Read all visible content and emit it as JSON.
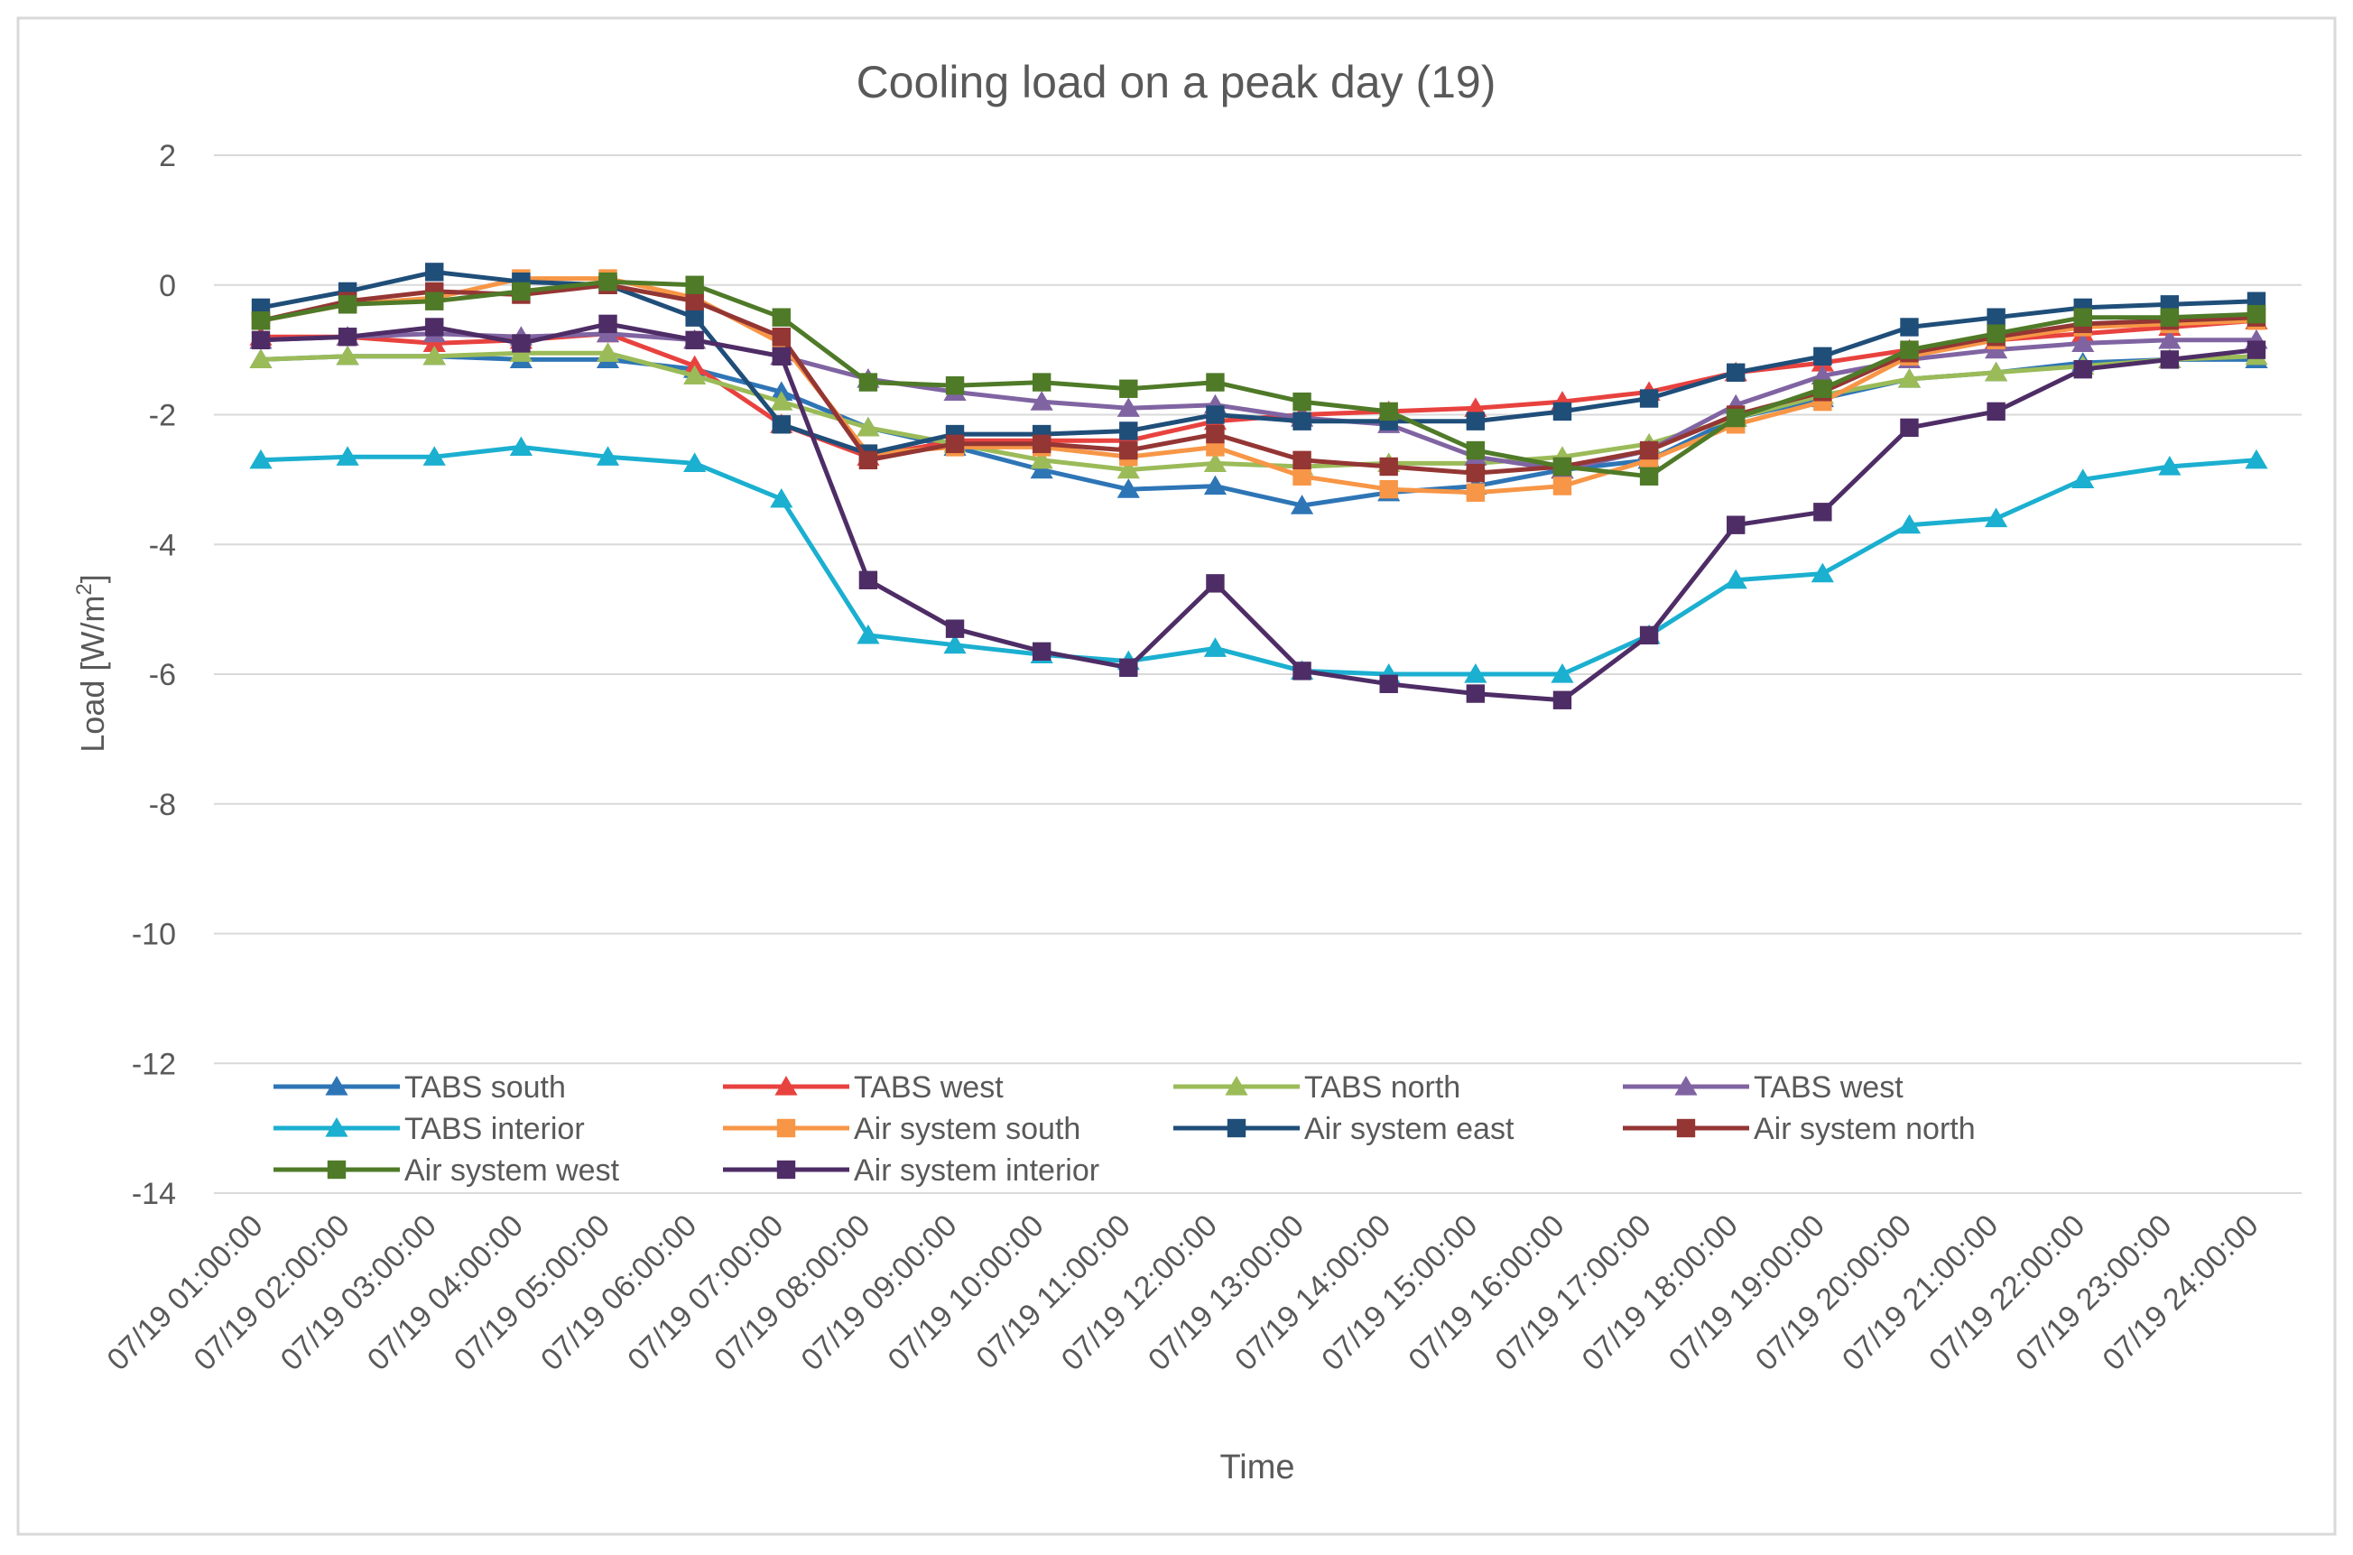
{
  "chart_data": {
    "type": "line",
    "title": "Cooling load on a peak day (19)",
    "xlabel": "Time",
    "ylabel_main": "Load [W/m",
    "ylabel_sup": "2",
    "ylabel_end": "]",
    "ylim": [
      -14,
      2
    ],
    "yticks": [
      2,
      0,
      -2,
      -4,
      -6,
      -8,
      -10,
      -12,
      -14
    ],
    "ytick_labels": [
      "2",
      "0",
      "-2",
      "-4",
      "-6",
      "-8",
      "-10",
      "-12",
      "-14"
    ],
    "grid": true,
    "legend_position": "bottom-inside",
    "categories": [
      "07/19  01:00:00",
      "07/19  02:00:00",
      "07/19  03:00:00",
      "07/19  04:00:00",
      "07/19  05:00:00",
      "07/19  06:00:00",
      "07/19  07:00:00",
      "07/19  08:00:00",
      "07/19  09:00:00",
      "07/19  10:00:00",
      "07/19  11:00:00",
      "07/19  12:00:00",
      "07/19  13:00:00",
      "07/19  14:00:00",
      "07/19  15:00:00",
      "07/19  16:00:00",
      "07/19  17:00:00",
      "07/19  18:00:00",
      "07/19  19:00:00",
      "07/19  20:00:00",
      "07/19  21:00:00",
      "07/19  22:00:00",
      "07/19  23:00:00",
      "07/19  24:00:00"
    ],
    "series": [
      {
        "name": "TABS south",
        "color": "#2E75B6",
        "marker": "triangle",
        "values": [
          -1.15,
          -1.1,
          -1.1,
          -1.15,
          -1.15,
          -1.3,
          -1.65,
          -2.2,
          -2.5,
          -2.85,
          -3.15,
          -3.1,
          -3.4,
          -3.2,
          -3.1,
          -2.85,
          -2.7,
          -2.05,
          -1.75,
          -1.45,
          -1.35,
          -1.2,
          -1.15,
          -1.15
        ]
      },
      {
        "name": "TABS west",
        "color": "#E8423F",
        "marker": "triangle",
        "values": [
          -0.8,
          -0.8,
          -0.9,
          -0.85,
          -0.75,
          -1.25,
          -2.15,
          -2.65,
          -2.4,
          -2.4,
          -2.4,
          -2.1,
          -2.0,
          -1.95,
          -1.9,
          -1.8,
          -1.65,
          -1.35,
          -1.2,
          -1.0,
          -0.85,
          -0.75,
          -0.65,
          -0.55
        ]
      },
      {
        "name": "TABS north",
        "color": "#9BBB59",
        "marker": "triangle",
        "values": [
          -1.15,
          -1.1,
          -1.1,
          -1.05,
          -1.05,
          -1.4,
          -1.8,
          -2.2,
          -2.45,
          -2.7,
          -2.85,
          -2.75,
          -2.8,
          -2.75,
          -2.75,
          -2.65,
          -2.45,
          -2.05,
          -1.7,
          -1.45,
          -1.35,
          -1.25,
          -1.15,
          -1.1
        ]
      },
      {
        "name": "TABS west",
        "color": "#8064A2",
        "marker": "triangle",
        "values": [
          -0.85,
          -0.8,
          -0.75,
          -0.8,
          -0.75,
          -0.85,
          -1.1,
          -1.45,
          -1.65,
          -1.8,
          -1.9,
          -1.85,
          -2.05,
          -2.15,
          -2.65,
          -2.85,
          -2.55,
          -1.85,
          -1.4,
          -1.15,
          -1.0,
          -0.9,
          -0.85,
          -0.85
        ]
      },
      {
        "name": "TABS interior",
        "color": "#1BAFD0",
        "marker": "triangle",
        "values": [
          -2.7,
          -2.65,
          -2.65,
          -2.5,
          -2.65,
          -2.75,
          -3.3,
          -5.4,
          -5.55,
          -5.7,
          -5.8,
          -5.6,
          -5.95,
          -6.0,
          -6.0,
          -6.0,
          -5.4,
          -4.55,
          -4.45,
          -3.7,
          -3.6,
          -3.0,
          -2.8,
          -2.7
        ]
      },
      {
        "name": "Air system south",
        "color": "#F79646",
        "marker": "square",
        "values": [
          -0.55,
          -0.3,
          -0.2,
          0.1,
          0.1,
          -0.2,
          -0.9,
          -2.6,
          -2.5,
          -2.5,
          -2.65,
          -2.5,
          -2.95,
          -3.15,
          -3.2,
          -3.1,
          -2.7,
          -2.15,
          -1.8,
          -1.1,
          -0.85,
          -0.65,
          -0.6,
          -0.55
        ]
      },
      {
        "name": "Air system east",
        "color": "#1F4E79",
        "marker": "square",
        "values": [
          -0.35,
          -0.1,
          0.2,
          0.05,
          0.0,
          -0.5,
          -2.15,
          -2.6,
          -2.3,
          -2.3,
          -2.25,
          -2.0,
          -2.1,
          -2.1,
          -2.1,
          -1.95,
          -1.75,
          -1.35,
          -1.1,
          -0.65,
          -0.5,
          -0.35,
          -0.3,
          -0.25
        ]
      },
      {
        "name": "Air system north",
        "color": "#943634",
        "marker": "square",
        "values": [
          -0.55,
          -0.25,
          -0.1,
          -0.15,
          0.0,
          -0.25,
          -0.8,
          -2.7,
          -2.45,
          -2.45,
          -2.55,
          -2.3,
          -2.7,
          -2.8,
          -2.9,
          -2.8,
          -2.55,
          -2.0,
          -1.65,
          -1.05,
          -0.8,
          -0.6,
          -0.55,
          -0.5
        ]
      },
      {
        "name": "Air system west",
        "color": "#4F7A28",
        "marker": "square",
        "values": [
          -0.55,
          -0.3,
          -0.25,
          -0.1,
          0.05,
          0.0,
          -0.5,
          -1.5,
          -1.55,
          -1.5,
          -1.6,
          -1.5,
          -1.8,
          -1.95,
          -2.55,
          -2.8,
          -2.95,
          -2.05,
          -1.6,
          -1.0,
          -0.75,
          -0.5,
          -0.5,
          -0.45
        ]
      },
      {
        "name": "Air system interior",
        "color": "#4E2D66",
        "marker": "square",
        "values": [
          -0.85,
          -0.8,
          -0.65,
          -0.9,
          -0.6,
          -0.85,
          -1.1,
          -4.55,
          -5.3,
          -5.65,
          -5.9,
          -4.6,
          -5.95,
          -6.15,
          -6.3,
          -6.4,
          -5.4,
          -3.7,
          -3.5,
          -2.2,
          -1.95,
          -1.3,
          -1.15,
          -1.0
        ]
      }
    ]
  }
}
